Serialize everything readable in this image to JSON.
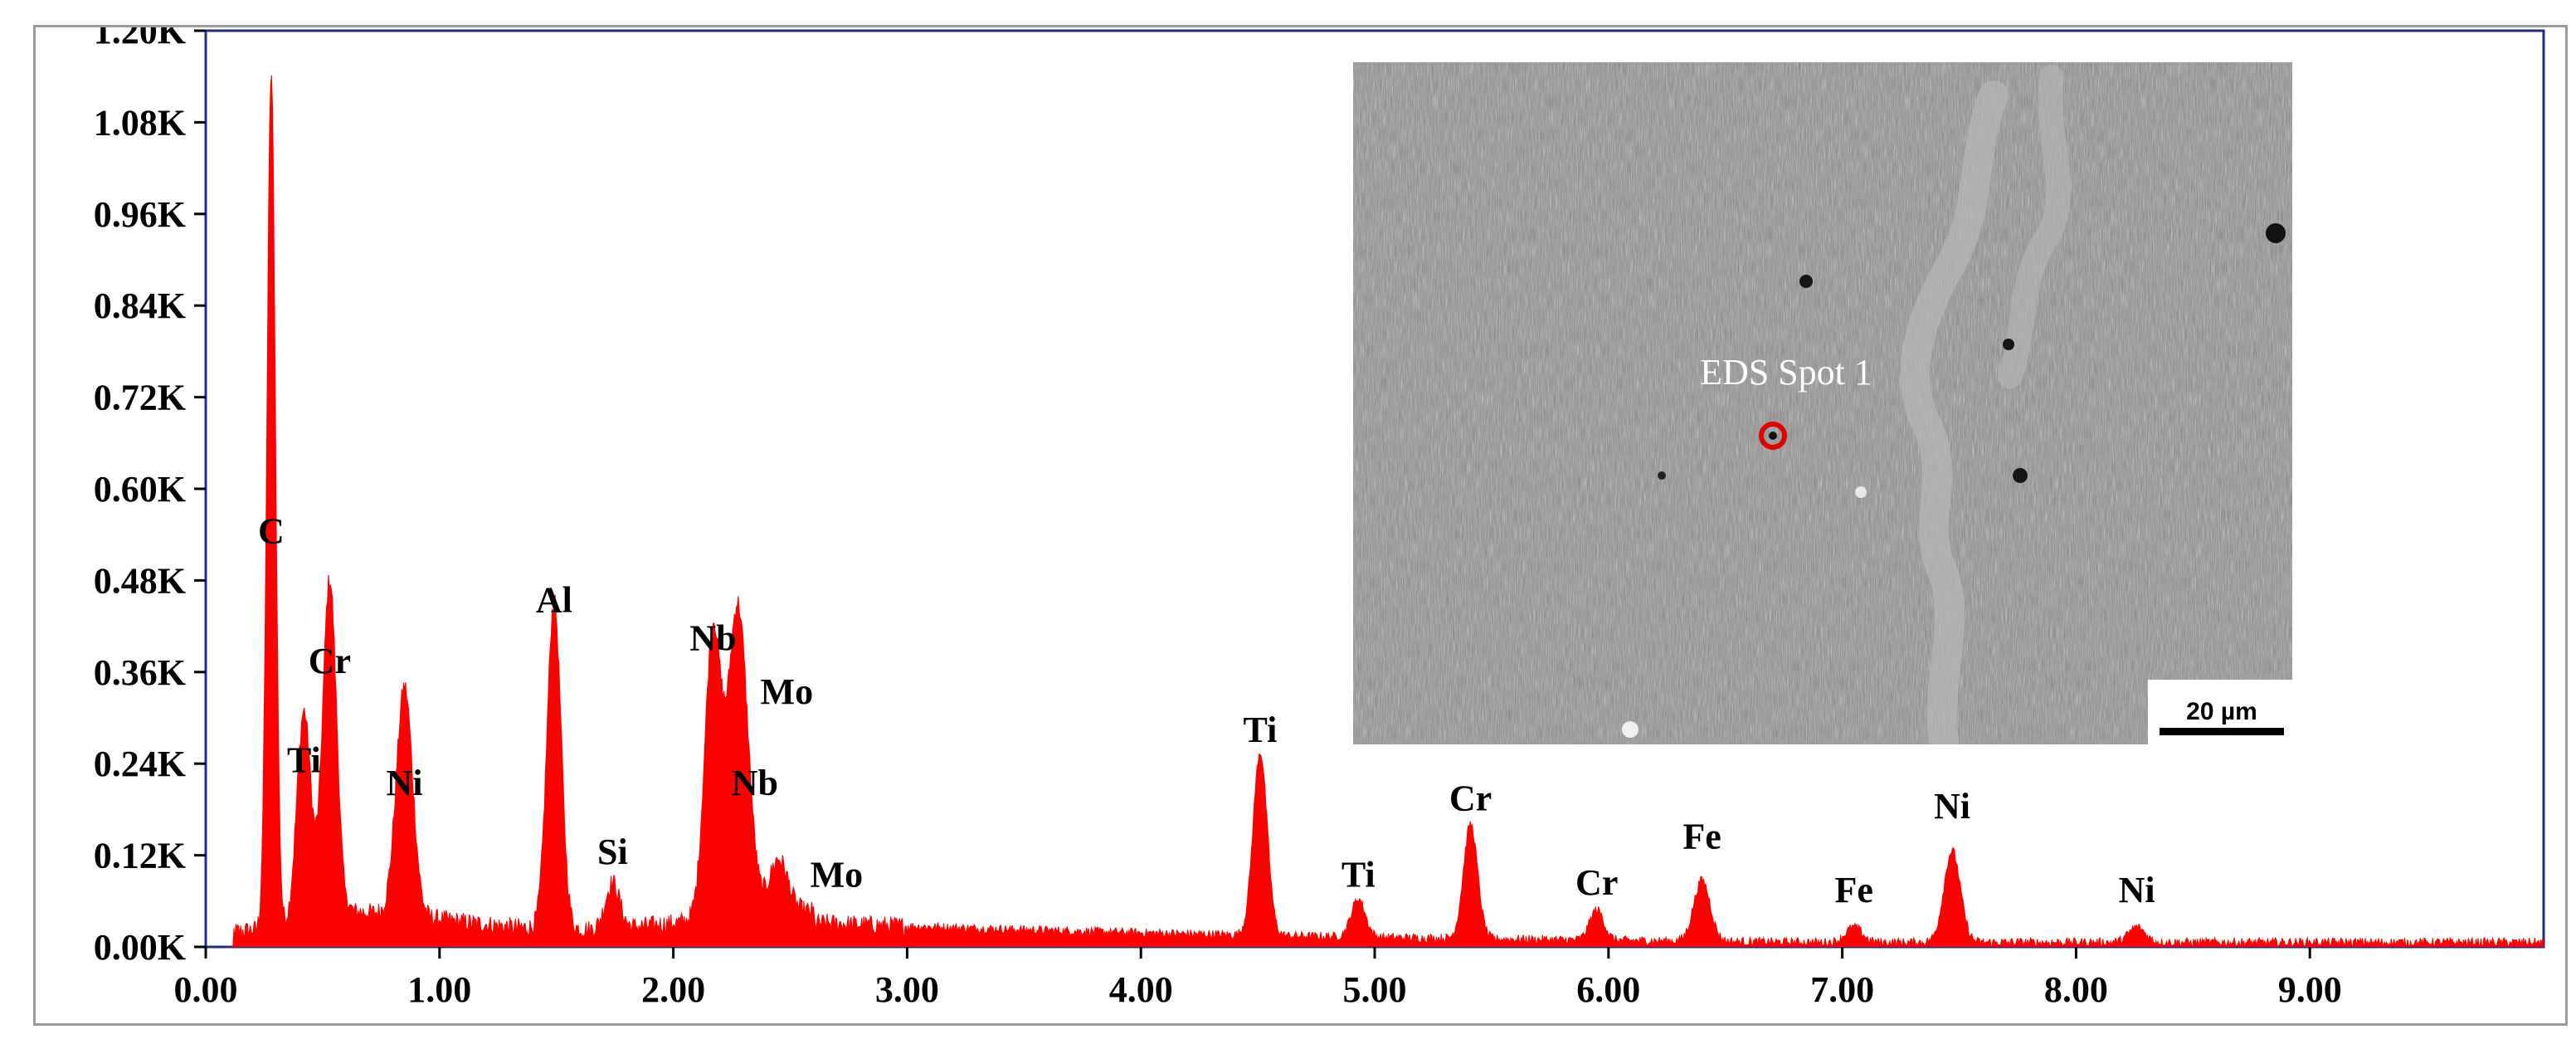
{
  "chart_data": {
    "type": "area",
    "title": "",
    "xlabel": "",
    "ylabel": "",
    "xlim": [
      0,
      10
    ],
    "ylim": [
      0,
      1.2
    ],
    "x_ticks": [
      {
        "value": 0,
        "label": "0.00"
      },
      {
        "value": 1,
        "label": "1.00"
      },
      {
        "value": 2,
        "label": "2.00"
      },
      {
        "value": 3,
        "label": "3.00"
      },
      {
        "value": 4,
        "label": "4.00"
      },
      {
        "value": 5,
        "label": "5.00"
      },
      {
        "value": 6,
        "label": "6.00"
      },
      {
        "value": 7,
        "label": "7.00"
      },
      {
        "value": 8,
        "label": "8.00"
      },
      {
        "value": 9,
        "label": "9.00"
      }
    ],
    "y_ticks": [
      {
        "value": 0.0,
        "label": "0.00K"
      },
      {
        "value": 0.12,
        "label": "0.12K"
      },
      {
        "value": 0.24,
        "label": "0.24K"
      },
      {
        "value": 0.36,
        "label": "0.36K"
      },
      {
        "value": 0.48,
        "label": "0.48K"
      },
      {
        "value": 0.6,
        "label": "0.60K"
      },
      {
        "value": 0.72,
        "label": "0.72K"
      },
      {
        "value": 0.84,
        "label": "0.84K"
      },
      {
        "value": 0.96,
        "label": "0.96K"
      },
      {
        "value": 1.08,
        "label": "1.08K"
      },
      {
        "value": 1.2,
        "label": "1.20K"
      }
    ],
    "grid": false,
    "color": "#ff0000",
    "peaks": [
      {
        "label": "C",
        "x": 0.28,
        "y": 1.12,
        "label_y": 0.52
      },
      {
        "label": "Ti",
        "x": 0.42,
        "y": 0.28,
        "label_y": 0.22
      },
      {
        "label": "Cr",
        "x": 0.53,
        "y": 0.45,
        "label_y": 0.35
      },
      {
        "label": "Ni",
        "x": 0.85,
        "y": 0.3,
        "label_y": 0.19
      },
      {
        "label": "Al",
        "x": 1.49,
        "y": 0.43,
        "label_y": 0.43
      },
      {
        "label": "Si",
        "x": 1.74,
        "y": 0.06,
        "label_y": 0.1
      },
      {
        "label": "Nb",
        "x": 2.17,
        "y": 0.38,
        "label_y": 0.38
      },
      {
        "label": "Mo",
        "x": 2.29,
        "y": 0.26,
        "label_y": 0.31
      },
      {
        "label": "Nb",
        "x": 2.26,
        "y": 0.18,
        "label_y": 0.19
      },
      {
        "label": "Mo",
        "x": 2.45,
        "y": 0.07,
        "label_y": 0.07
      },
      {
        "label": "Ti",
        "x": 4.51,
        "y": 0.24,
        "label_y": 0.26
      },
      {
        "label": "Ti",
        "x": 4.93,
        "y": 0.05,
        "label_y": 0.07
      },
      {
        "label": "Cr",
        "x": 5.41,
        "y": 0.15,
        "label_y": 0.17
      },
      {
        "label": "Cr",
        "x": 5.95,
        "y": 0.04,
        "label_y": 0.06
      },
      {
        "label": "Fe",
        "x": 6.4,
        "y": 0.08,
        "label_y": 0.12
      },
      {
        "label": "Fe",
        "x": 7.05,
        "y": 0.02,
        "label_y": 0.05
      },
      {
        "label": "Ni",
        "x": 7.47,
        "y": 0.12,
        "label_y": 0.16
      },
      {
        "label": "Ni",
        "x": 8.26,
        "y": 0.02,
        "label_y": 0.05
      }
    ]
  },
  "inset": {
    "spot_label": "EDS Spot 1",
    "scale_bar_label": "20 µm",
    "background_color": "#8a8a8a",
    "spot_color": "#e00000"
  }
}
